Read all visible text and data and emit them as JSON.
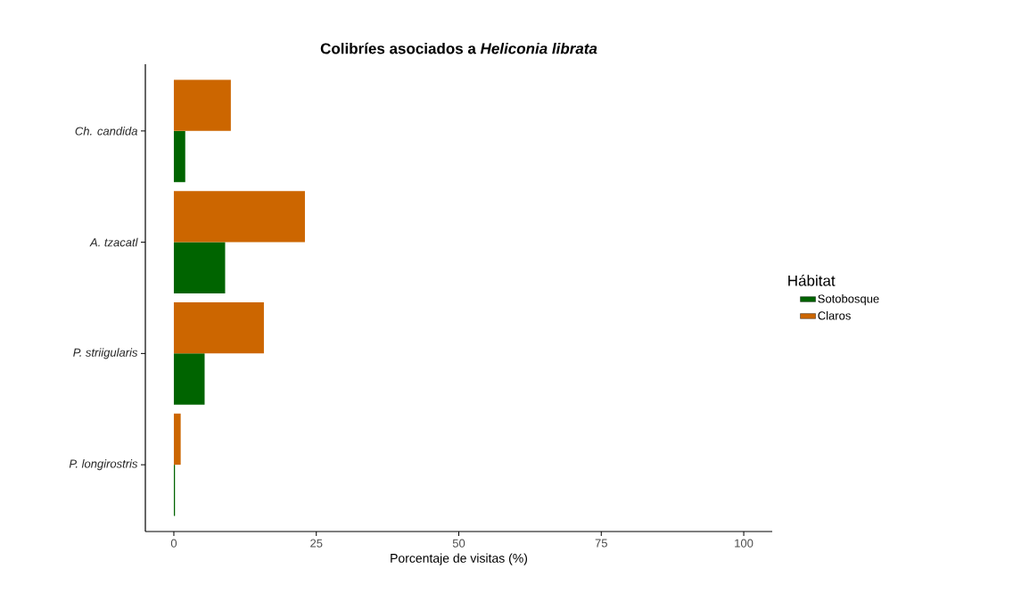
{
  "chart_data": {
    "type": "bar",
    "orientation": "horizontal",
    "title": "Colibríes asociados a *Heliconia librata*",
    "xlabel": "Porcentaje de visitas (%)",
    "legend_title": "Hábitat",
    "legend": "right",
    "categories": [
      "Ch. candida",
      "A. tzacatl",
      "P. striigularis",
      "P. longirostris"
    ],
    "series": [
      {
        "name": "Sotobosque",
        "color": "#006400",
        "values": [
          2,
          9,
          5.4,
          0.2
        ]
      },
      {
        "name": "Claros",
        "color": "#cc6600",
        "values": [
          10,
          23,
          15.8,
          1.2
        ]
      }
    ],
    "xlim": [
      -5,
      105
    ],
    "xticks": [
      0,
      25,
      50,
      75,
      100
    ]
  }
}
